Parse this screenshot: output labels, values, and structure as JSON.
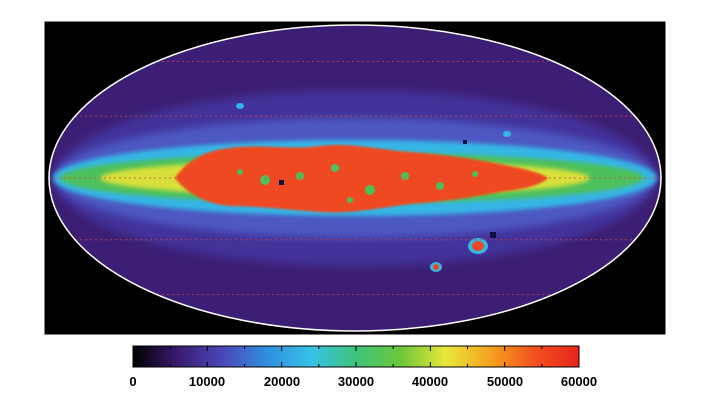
{
  "map": {
    "projection": "mollweide-all-sky",
    "background_color": "#000000",
    "outline_color": "#ffffff",
    "graticule_color": "#d04040",
    "graticule": true
  },
  "colorbar": {
    "min": 0,
    "max": 60000,
    "ticks": [
      0,
      10000,
      20000,
      30000,
      40000,
      50000,
      60000
    ],
    "tick_labels": [
      "0",
      "10000",
      "20000",
      "30000",
      "40000",
      "50000",
      "60000"
    ],
    "minor_ticks_per_interval": 2,
    "colormap": [
      "#000000",
      "#3a1a6e",
      "#4b46b8",
      "#2f8fe0",
      "#37c1e6",
      "#3fc47a",
      "#6cc63b",
      "#e8e83a",
      "#f5a21f",
      "#f2521f",
      "#e8241c"
    ]
  }
}
